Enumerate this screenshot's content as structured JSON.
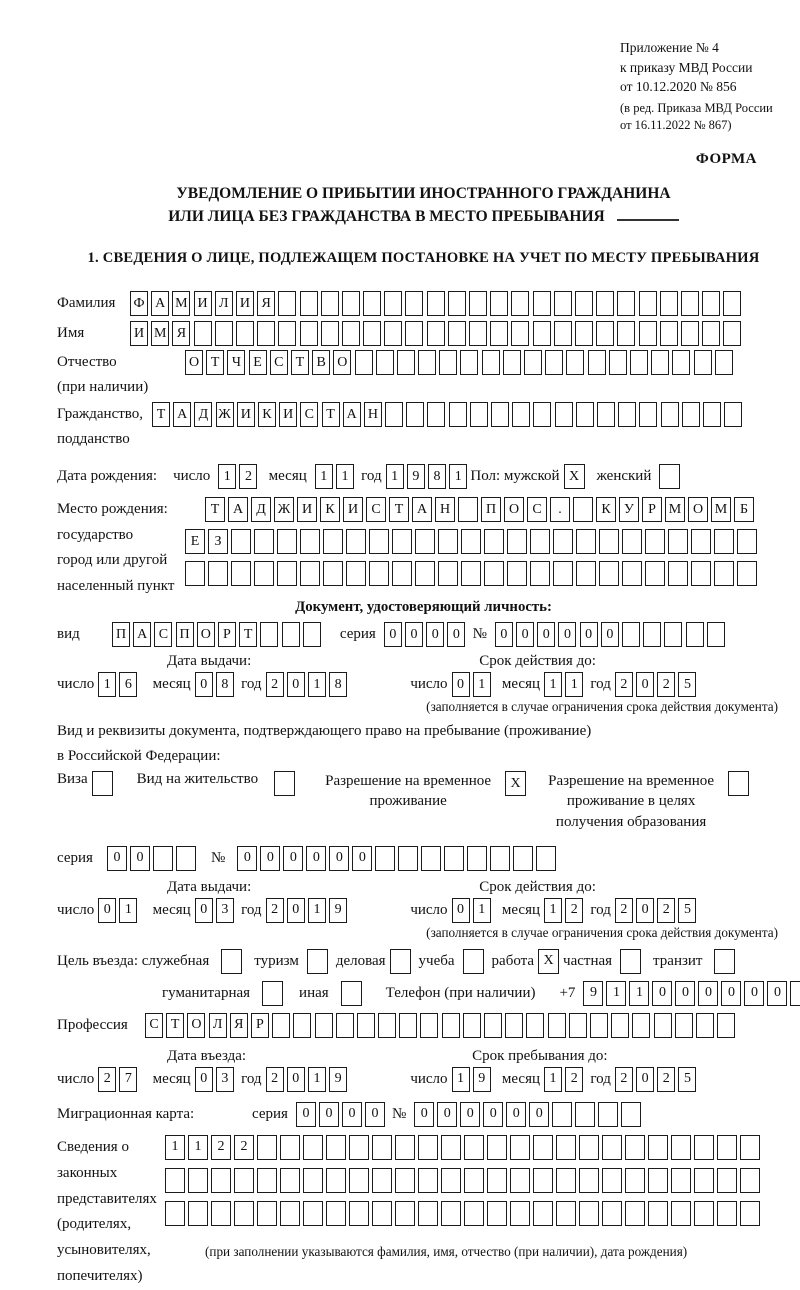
{
  "page": {
    "annex": [
      "Приложение № 4",
      "к приказу МВД России",
      "от 10.12.2020 № 856"
    ],
    "edition": [
      "(в ред. Приказа МВД России",
      "от 16.11.2022 № 867)"
    ],
    "forma": "ФОРМА",
    "title1": "УВЕДОМЛЕНИЕ О ПРИБЫТИИ ИНОСТРАННОГО ГРАЖДАНИНА",
    "title2": "ИЛИ ЛИЦА БЕЗ ГРАЖДАНСТВА В МЕСТО ПРЕБЫВАНИЯ",
    "section1": "1. СВЕДЕНИЯ О ЛИЦЕ, ПОДЛЕЖАЩЕМ ПОСТАНОВКЕ НА УЧЕТ ПО МЕСТУ ПРЕБЫВАНИЯ"
  },
  "labels": {
    "surname": "Фамилия",
    "name": "Имя",
    "patronymic1": "Отчество",
    "patronymic2": "(при наличии)",
    "citizenship1": "Гражданство,",
    "citizenship2": "подданство",
    "birth_date": "Дата рождения:",
    "day": "число",
    "month": "месяц",
    "year": "год",
    "sex": "Пол: мужской",
    "female": "женский",
    "birthplace": "Место рождения:",
    "state": "государство",
    "city1": "город или другой",
    "city2": "населенный пункт",
    "identity_doc": "Документ, удостоверяющий личность:",
    "kind": "вид",
    "series": "серия",
    "number": "№",
    "issue_date": "Дата выдачи:",
    "valid_until": "Срок действия до:",
    "valid_note": "(заполняется в случае ограничения срока действия документа)",
    "right_doc1": "Вид и реквизиты документа, подтверждающего право на пребывание (проживание)",
    "right_doc2": "в Российской Федерации:",
    "visa": "Виза",
    "residence_permit": "Вид на жительство",
    "rvp1": "Разрешение на временное",
    "rvp2": "проживание",
    "rvp_edu1": "Разрешение на временное",
    "rvp_edu2": "проживание в целях",
    "rvp_edu3": "получения образования",
    "purpose": "Цель въезда: служебная",
    "tourism": "туризм",
    "business": "деловая",
    "study": "учеба",
    "work": "работа",
    "private": "частная",
    "transit": "транзит",
    "humanitarian": "гуманитарная",
    "other": "иная",
    "phone": "Телефон (при наличии)",
    "phone_prefix": "+7",
    "profession": "Профессия",
    "entry_date": "Дата въезда:",
    "stay_until": "Срок пребывания до:",
    "migration_card": "Миграционная карта:",
    "reps1": "Сведения о",
    "reps2": "законных",
    "reps3": "представителях",
    "reps4": "(родителях,",
    "reps5": "усыновителях,",
    "reps6": "попечителях)",
    "reps_note": "(при заполнении указываются фамилия, имя, отчество (при наличии), дата рождения)"
  },
  "fields": {
    "surname": {
      "value": "ФАМИЛИЯ",
      "total": 29
    },
    "name": {
      "value": "ИМЯ",
      "total": 29
    },
    "patronymic": {
      "value": "ОТЧЕСТВО",
      "total": 26
    },
    "citizenship": {
      "value": "ТАДЖИКИСТАН",
      "total": 28
    },
    "birth": {
      "day": "12",
      "month": "11",
      "year": "1981"
    },
    "place1": {
      "value": "ТАДЖИКИСТАН ПОС. КУРМОМБ",
      "total": 24
    },
    "place2": {
      "value": "ЕЗ",
      "total": 25
    },
    "place3": {
      "value": "",
      "total": 25
    },
    "doc_kind": {
      "value": "ПАСПОРТ",
      "total": 10
    },
    "doc_series": {
      "value": "0000",
      "total": 4
    },
    "doc_number": {
      "value": "000000",
      "total": 11
    },
    "doc_issue": {
      "day": "16",
      "month": "08",
      "year": "2018"
    },
    "doc_until": {
      "day": "01",
      "month": "11",
      "year": "2025"
    },
    "rvp_series": {
      "value": "00",
      "total": 4
    },
    "rvp_number": {
      "value": "000000",
      "total": 14
    },
    "rvp_issue": {
      "day": "01",
      "month": "03",
      "year": "2019"
    },
    "rvp_until": {
      "day": "01",
      "month": "12",
      "year": "2025"
    },
    "phone": {
      "value": "911000000",
      "total": 10
    },
    "profession": {
      "value": "СТОЛЯР",
      "total": 28
    },
    "entry": {
      "day": "27",
      "month": "03",
      "year": "2019"
    },
    "stay": {
      "day": "19",
      "month": "12",
      "year": "2025"
    },
    "mig_series": {
      "value": "0000",
      "total": 4
    },
    "mig_number": {
      "value": "000000",
      "total": 10
    },
    "reps_row1": {
      "value": "1122",
      "total": 26
    },
    "reps_row2": {
      "value": "",
      "total": 26
    },
    "reps_row3": {
      "value": "",
      "total": 26
    }
  },
  "checks": {
    "male": "X",
    "female": "",
    "visa": "",
    "residence_permit": "",
    "rvp": "X",
    "rvp_edu": "",
    "official": "",
    "tourism": "",
    "business": "",
    "study": "",
    "work": "X",
    "private": "",
    "transit": "",
    "humanitarian": "",
    "other": ""
  }
}
